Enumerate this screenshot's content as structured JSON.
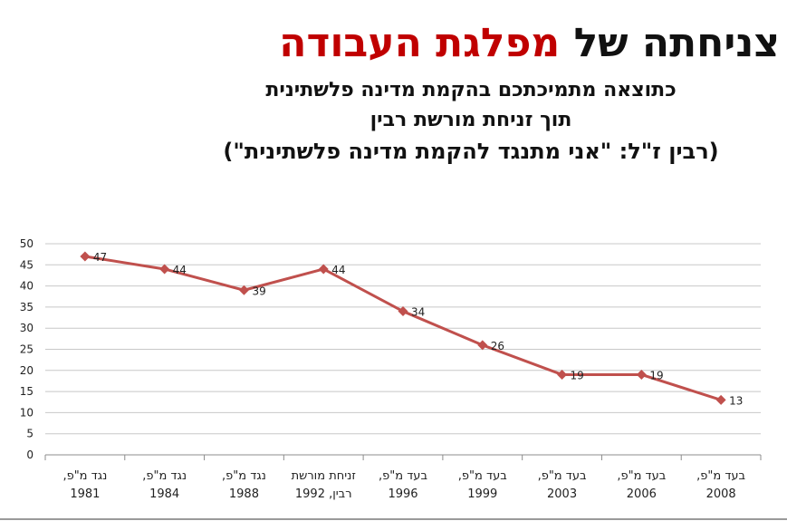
{
  "slide": {
    "title_part1": "צניחתה של",
    "title_part2": "מפלגת העבודה",
    "subtitle_line1": "כתוצאה מתמיכתכם בהקמת מדינה פלשתינית",
    "subtitle_line2": "תוך זניחת מורשת רבין",
    "subtitle_line3": "(רבין ז\"ל: \"אני מתנגד להקמת מדינה פלשתינית\")"
  },
  "colors": {
    "title_accent": "#c00000",
    "series_line": "#c0504d",
    "gridline": "#c8c8c8",
    "axis": "#8c8c8c"
  },
  "chart_data": {
    "type": "line",
    "title": "",
    "xlabel": "",
    "ylabel": "",
    "ylim": [
      0,
      50
    ],
    "ytick_step": 5,
    "grid": true,
    "legend": "none",
    "marker": "diamond",
    "categories": [
      [
        "נגד מ\"פ,",
        "1981"
      ],
      [
        "נגד מ\"פ,",
        "1984"
      ],
      [
        "נגד מ\"פ,",
        "1988"
      ],
      [
        "זניחת מורשת",
        "רבין, 1992"
      ],
      [
        "בעד מ\"פ,",
        "1996"
      ],
      [
        "בעד מ\"פ,",
        "1999"
      ],
      [
        "בעד מ\"פ,",
        "2003"
      ],
      [
        "בעד מ\"פ,",
        "2006"
      ],
      [
        "בעד מ\"פ,",
        "2008"
      ]
    ],
    "series": [
      {
        "values": [
          47,
          44,
          39,
          44,
          34,
          26,
          19,
          19,
          13
        ]
      }
    ]
  }
}
